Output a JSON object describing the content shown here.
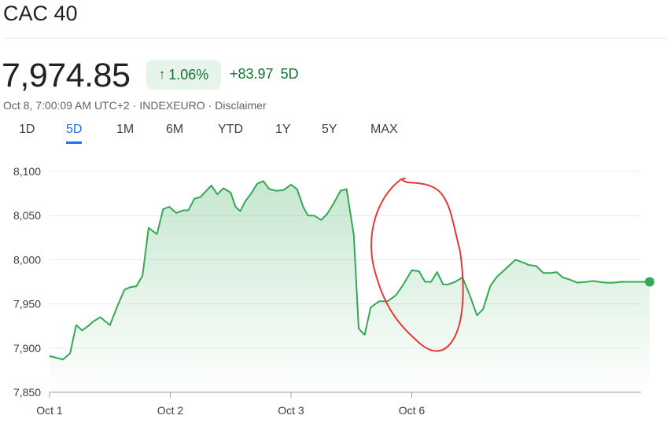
{
  "header": {
    "title": "CAC 40",
    "price": "7,974.85",
    "change_percent": "1.06%",
    "change_value": "+83.97",
    "change_period": "5D",
    "timestamp": "Oct 8, 7:00:09 AM UTC+2",
    "exchange": "INDEXEURO",
    "disclaimer": "Disclaimer",
    "meta_sep": "·",
    "arrow_icon": "arrow-up-icon",
    "arrow_glyph": "↑",
    "up_color": "#137333",
    "up_bg": "#e6f4ea"
  },
  "tabs": [
    {
      "label": "1D",
      "active": false
    },
    {
      "label": "5D",
      "active": true
    },
    {
      "label": "1M",
      "active": false
    },
    {
      "label": "6M",
      "active": false
    },
    {
      "label": "YTD",
      "active": false
    },
    {
      "label": "1Y",
      "active": false
    },
    {
      "label": "5Y",
      "active": false
    },
    {
      "label": "MAX",
      "active": false
    }
  ],
  "chart_data": {
    "type": "line",
    "title": "",
    "xlabel": "",
    "ylabel": "",
    "ylim": [
      7850,
      8100
    ],
    "yticks": [
      7850,
      7900,
      7950,
      8000,
      8050,
      8100
    ],
    "ytick_labels": [
      "7,850",
      "7,900",
      "7,950",
      "8,000",
      "8,050",
      "8,100"
    ],
    "xlim": [
      0,
      5
    ],
    "xticks": [
      0,
      1,
      2,
      3
    ],
    "xtick_labels": [
      "Oct 1",
      "Oct 2",
      "Oct 3",
      "Oct 6"
    ],
    "grid": true,
    "line_color": "#34a853",
    "fill_color": "#34a853",
    "series": [
      {
        "x": [
          0.0,
          0.11,
          0.17,
          0.22,
          0.27,
          0.32,
          0.36,
          0.42,
          0.5,
          0.56,
          0.62,
          0.67,
          0.72,
          0.77,
          0.82,
          0.89,
          0.94,
          0.99,
          1.05,
          1.11,
          1.15,
          1.2,
          1.25,
          1.29,
          1.34,
          1.39,
          1.44,
          1.5,
          1.54,
          1.58,
          1.62,
          1.67,
          1.72,
          1.77,
          1.82,
          1.88,
          1.94,
          2.0,
          2.05,
          2.1,
          2.14,
          2.19,
          2.25,
          2.3,
          2.35,
          2.41,
          2.46,
          2.52,
          2.56,
          2.61,
          2.66,
          2.73,
          2.8,
          2.87,
          2.93,
          3.0,
          3.06,
          3.11,
          3.16,
          3.21,
          3.26,
          3.3,
          3.36,
          3.42,
          3.48,
          3.54,
          3.59,
          3.65,
          3.7,
          3.74,
          3.78,
          3.86,
          3.92,
          3.97,
          4.03,
          4.09,
          4.15,
          4.2,
          4.25,
          4.32,
          4.37,
          4.45,
          4.5,
          4.55,
          4.61,
          4.67,
          4.74,
          4.82,
          4.88,
          4.93,
          4.97
        ],
        "values": [
          7891,
          7887,
          7894,
          7926,
          7920,
          7925,
          7930,
          7935,
          7926,
          7947,
          7966,
          7969,
          7970,
          7982,
          8036,
          8029,
          8057,
          8060,
          8053,
          8056,
          8056,
          8069,
          8071,
          8077,
          8084,
          8074,
          8081,
          8076,
          8060,
          8055,
          8066,
          8075,
          8086,
          8089,
          8080,
          8078,
          8079,
          8085,
          8080,
          8060,
          8050,
          8050,
          8045,
          8052,
          8063,
          8078,
          8080,
          8028,
          7922,
          7915,
          7946,
          7953,
          7953,
          7960,
          7972,
          7988,
          7987,
          7975,
          7975,
          7986,
          7972,
          7972,
          7975,
          7980,
          7960,
          7937,
          7944,
          7970,
          7980,
          7985,
          7990,
          8000,
          7997,
          7994,
          7993,
          7985,
          7985,
          7986,
          7980,
          7977,
          7974,
          7975,
          7976,
          7975,
          7974,
          7974,
          7975,
          7975,
          7975,
          7975,
          7975
        ]
      }
    ],
    "annotation": {
      "shape": "ellipse",
      "color": "#e53935"
    }
  }
}
